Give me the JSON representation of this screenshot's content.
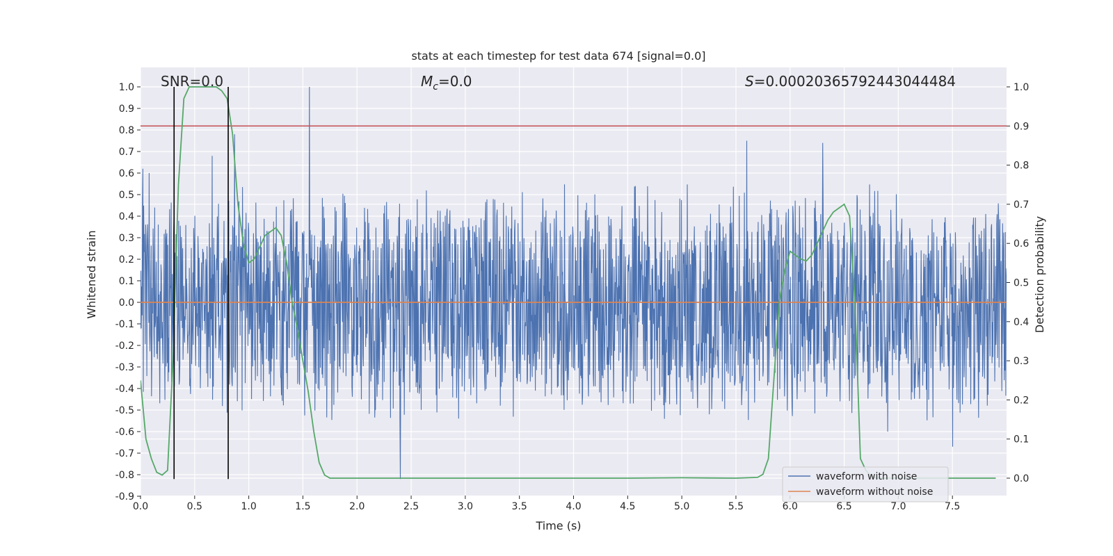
{
  "chart_data": {
    "type": "line",
    "title": "stats at each timestep for test data 674 [signal=0.0]",
    "xlabel": "Time (s)",
    "ylabel": "Whitened strain",
    "y2label": "Detection probability",
    "xlim": [
      0.0,
      8.0
    ],
    "ylim": [
      -0.9,
      1.08
    ],
    "y2lim": [
      -0.05,
      1.04
    ],
    "xticks": [
      "0.0",
      "0.5",
      "1.0",
      "1.5",
      "2.0",
      "2.5",
      "3.0",
      "3.5",
      "4.0",
      "4.5",
      "5.0",
      "5.5",
      "6.0",
      "6.5",
      "7.0",
      "7.5"
    ],
    "yticks": [
      "1.0",
      "0.9",
      "0.8",
      "0.7",
      "0.6",
      "0.5",
      "0.4",
      "0.3",
      "0.2",
      "0.1",
      "0.0",
      "-0.1",
      "-0.2",
      "-0.3",
      "-0.4",
      "-0.5",
      "-0.6",
      "-0.7",
      "-0.8",
      "-0.9"
    ],
    "y2ticks": [
      "1.0",
      "0.9",
      "0.8",
      "0.7",
      "0.6",
      "0.5",
      "0.4",
      "0.3",
      "0.2",
      "0.1",
      "0.0"
    ],
    "grid": true,
    "legend_position": "lower right",
    "annotations": {
      "snr": "SNR=0.0",
      "mc_symbol": "M",
      "mc_sub": "c",
      "mc_value": "=0.0",
      "s_symbol": "S",
      "s_value": "=0.00020365792443044484"
    },
    "series": [
      {
        "name": "waveform with noise",
        "color": "#4c72b0",
        "core_amplitude": 0.27,
        "peak_x": [
          0.02,
          0.08,
          0.31,
          0.66,
          0.87,
          1.56,
          2.4,
          4.1,
          5.6,
          6.3,
          6.9,
          7.5
        ],
        "peak_y": [
          0.62,
          0.6,
          0.4,
          0.68,
          0.78,
          1.0,
          -0.82,
          -0.25,
          0.75,
          0.74,
          -0.6,
          -0.67
        ]
      },
      {
        "name": "waveform without noise",
        "color": "#dd8452",
        "x": [
          0.0,
          8.0
        ],
        "y": [
          0.0,
          0.0
        ]
      },
      {
        "name": "detection probability",
        "color": "#55a868",
        "axis": "right",
        "x": [
          0.0,
          0.05,
          0.1,
          0.15,
          0.2,
          0.25,
          0.3,
          0.35,
          0.4,
          0.45,
          0.5,
          0.55,
          0.6,
          0.65,
          0.7,
          0.75,
          0.8,
          0.85,
          0.9,
          0.95,
          1.0,
          1.05,
          1.1,
          1.15,
          1.2,
          1.25,
          1.3,
          1.35,
          1.4,
          1.45,
          1.5,
          1.55,
          1.6,
          1.65,
          1.7,
          1.75,
          1.8,
          2.0,
          2.5,
          3.0,
          3.5,
          4.0,
          4.5,
          5.0,
          5.5,
          5.7,
          5.75,
          5.8,
          5.85,
          5.9,
          5.95,
          6.0,
          6.05,
          6.1,
          6.15,
          6.2,
          6.25,
          6.3,
          6.35,
          6.4,
          6.45,
          6.5,
          6.55,
          6.6,
          6.65,
          6.7,
          6.75,
          6.8,
          7.0,
          7.5,
          7.9
        ],
        "y": [
          0.25,
          0.1,
          0.05,
          0.015,
          0.008,
          0.02,
          0.3,
          0.75,
          0.97,
          1.0,
          1.0,
          1.0,
          1.0,
          1.0,
          1.0,
          0.99,
          0.97,
          0.88,
          0.7,
          0.6,
          0.55,
          0.56,
          0.59,
          0.62,
          0.63,
          0.64,
          0.62,
          0.55,
          0.45,
          0.38,
          0.3,
          0.22,
          0.12,
          0.04,
          0.008,
          0.0,
          0.0,
          0.0,
          0.0,
          0.0,
          0.0,
          0.0,
          0.0,
          0.001,
          0.0,
          0.002,
          0.01,
          0.05,
          0.25,
          0.45,
          0.53,
          0.58,
          0.57,
          0.56,
          0.555,
          0.57,
          0.6,
          0.63,
          0.66,
          0.68,
          0.69,
          0.7,
          0.67,
          0.45,
          0.05,
          0.02,
          0.005,
          0.0,
          0.0,
          0.0,
          0.0
        ]
      }
    ],
    "threshold": {
      "axis": "right",
      "value": 0.9,
      "color": "#c44e52"
    },
    "vlines": {
      "x": [
        0.31,
        0.81
      ],
      "color": "#000000",
      "y_range": [
        -0.82,
        1.0
      ]
    }
  }
}
